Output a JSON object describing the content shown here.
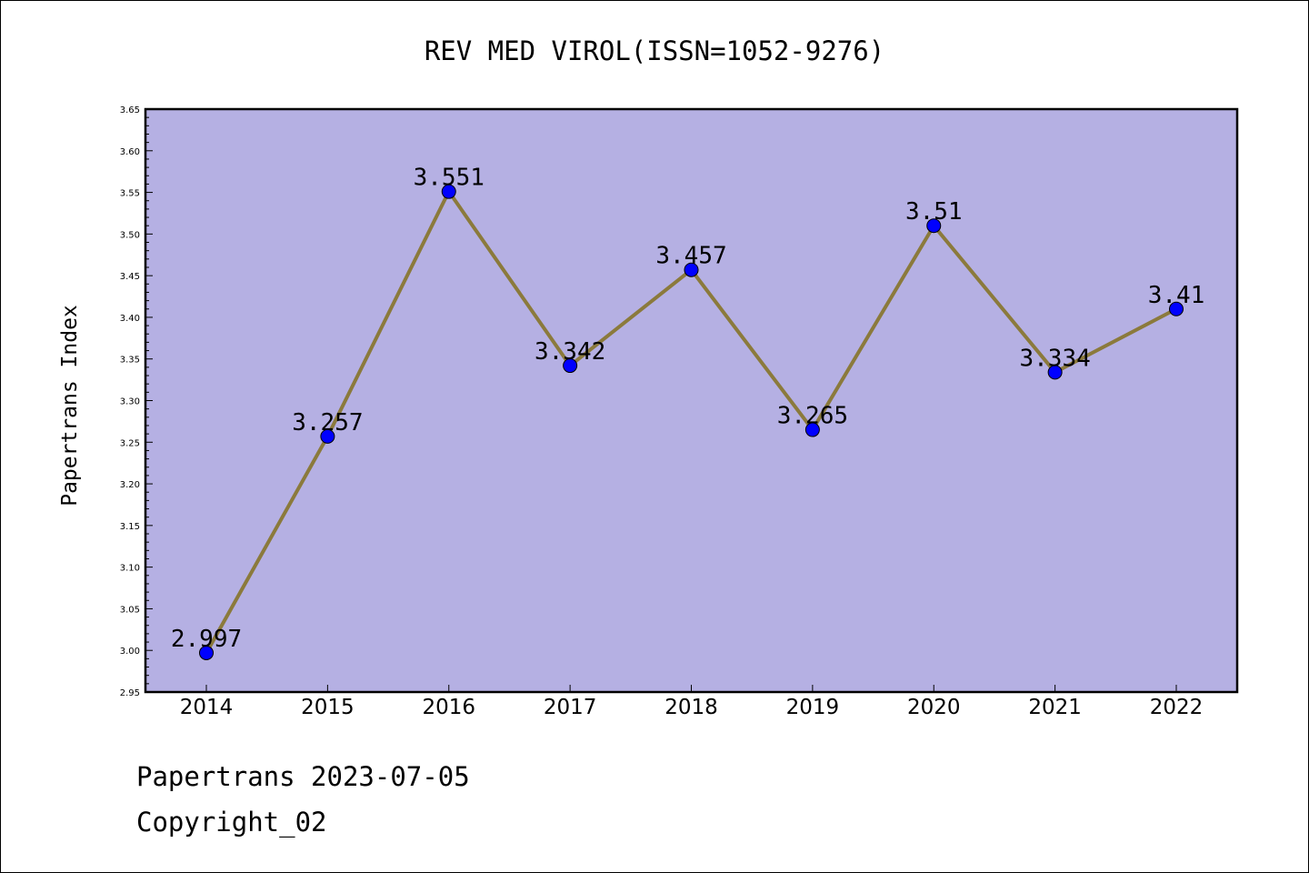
{
  "chart_data": {
    "type": "line",
    "title": "REV MED VIROL(ISSN=1052-9276)",
    "ylabel": "Papertrans Index",
    "xlabel": "",
    "categories": [
      "2014",
      "2015",
      "2016",
      "2017",
      "2018",
      "2019",
      "2020",
      "2021",
      "2022"
    ],
    "values": [
      2.997,
      3.257,
      3.551,
      3.342,
      3.457,
      3.265,
      3.51,
      3.334,
      3.41
    ],
    "data_labels": [
      "2.997",
      "3.257",
      "3.551",
      "3.342",
      "3.457",
      "3.265",
      "3.51",
      "3.334",
      "3.41"
    ],
    "ylim": [
      2.95,
      3.65
    ],
    "yticks": [
      "2.95",
      "3.00",
      "3.05",
      "3.10",
      "3.15",
      "3.20",
      "3.25",
      "3.30",
      "3.35",
      "3.40",
      "3.45",
      "3.50",
      "3.55",
      "3.60",
      "3.65"
    ],
    "grid": false,
    "legend": "none",
    "colors": {
      "plot_background": "#b5b0e3",
      "line": "#8b7a3c",
      "marker": "#0000ff"
    }
  },
  "footer": {
    "line1": "Papertrans 2023-07-05",
    "line2": "Copyright_02"
  }
}
